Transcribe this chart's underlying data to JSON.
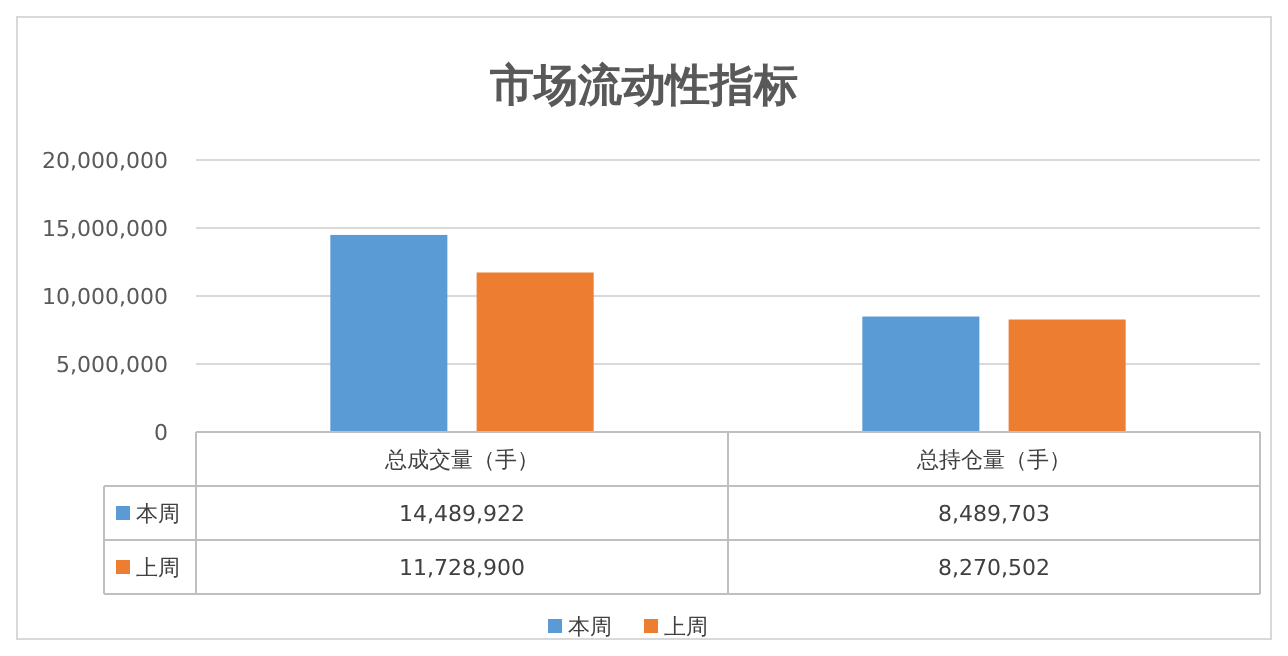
{
  "chart_data": {
    "type": "bar",
    "title": "市场流动性指标",
    "categories": [
      "总成交量（手）",
      "总持仓量（手）"
    ],
    "series": [
      {
        "name": "本周",
        "color": "#5b9bd5",
        "values": [
          14489922,
          8489703
        ],
        "value_labels": [
          "14,489,922",
          "8,489,703"
        ]
      },
      {
        "name": "上周",
        "color": "#ed7d31",
        "values": [
          11728900,
          8270502
        ],
        "value_labels": [
          "11,728,900",
          "8,270,502"
        ]
      }
    ],
    "ylim": [
      0,
      20000000
    ],
    "yticks": [
      {
        "value": 0,
        "label": "0"
      },
      {
        "value": 5000000,
        "label": "5,000,000"
      },
      {
        "value": 10000000,
        "label": "10,000,000"
      },
      {
        "value": 15000000,
        "label": "15,000,000"
      },
      {
        "value": 20000000,
        "label": "20,000,000"
      }
    ],
    "grid": "y",
    "legend": "bottom"
  }
}
